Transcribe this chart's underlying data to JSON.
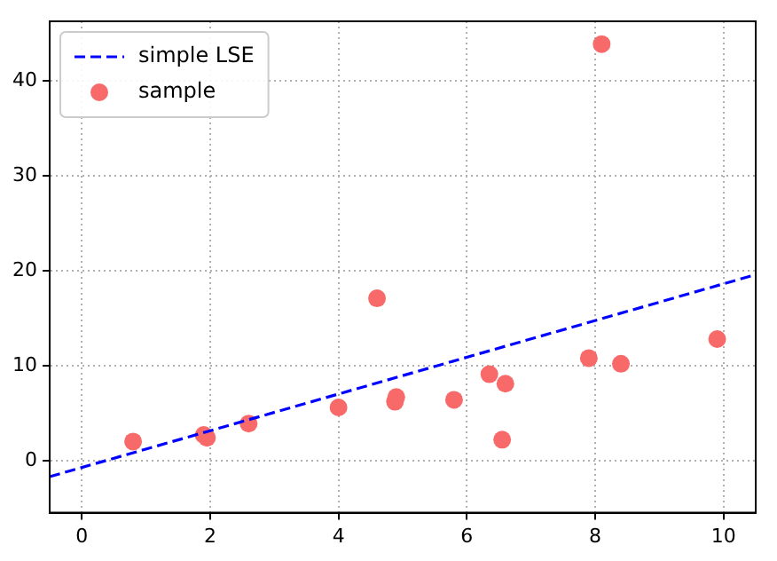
{
  "chart_data": {
    "type": "scatter",
    "xlim": [
      -0.5,
      10.5
    ],
    "ylim": [
      -5.5,
      46.3
    ],
    "xticks": [
      0,
      2,
      4,
      6,
      8,
      10
    ],
    "yticks": [
      0,
      10,
      20,
      30,
      40
    ],
    "grid": true,
    "legend": "top left",
    "series": [
      {
        "name": "simple LSE",
        "type": "line",
        "color": "#0000ff",
        "line_style": "dashed",
        "marker": "none",
        "x": [
          -0.5,
          10.5
        ],
        "values": [
          -1.7,
          19.6
        ]
      },
      {
        "name": "sample",
        "color": "#f86a6a",
        "marker": "circle",
        "x": [
          0.8,
          1.9,
          1.95,
          2.6,
          4.0,
          4.6,
          4.88,
          4.9,
          5.8,
          6.35,
          6.6,
          6.55,
          7.9,
          8.1,
          8.4,
          9.9
        ],
        "values": [
          2.0,
          2.7,
          2.4,
          3.9,
          5.6,
          17.1,
          6.2,
          6.7,
          6.4,
          9.1,
          8.1,
          2.2,
          10.8,
          43.9,
          10.2,
          12.8
        ]
      }
    ]
  }
}
